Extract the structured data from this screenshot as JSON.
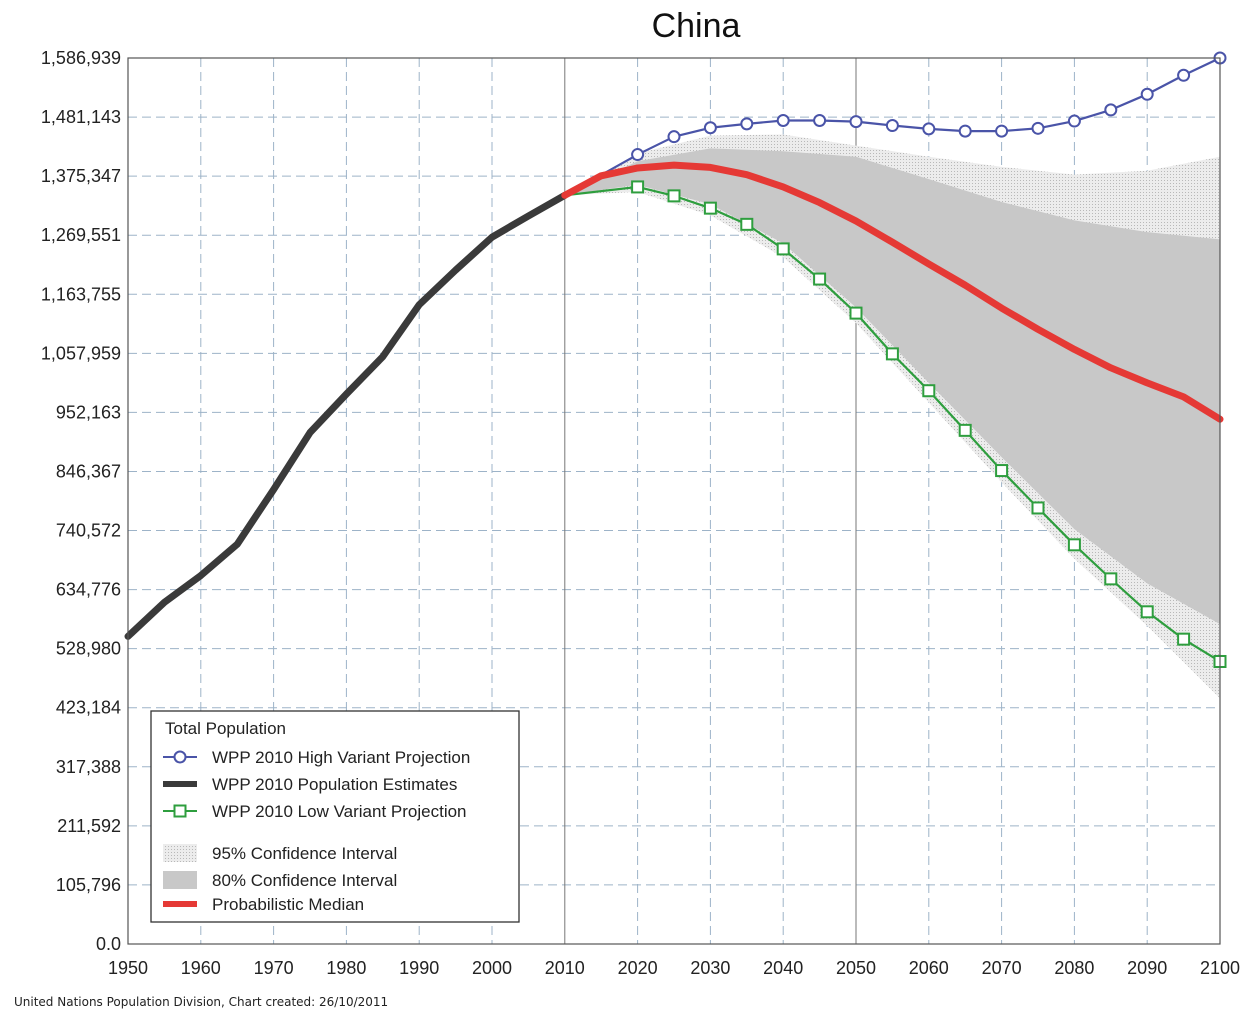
{
  "chart_data": {
    "type": "line",
    "title": "China",
    "xlabel": "",
    "ylabel": "",
    "xlim": [
      1950,
      2100
    ],
    "ylim": [
      0,
      1586939
    ],
    "x_ticks": [
      "1950",
      "1960",
      "1970",
      "1980",
      "1990",
      "2000",
      "2010",
      "2020",
      "2030",
      "2040",
      "2050",
      "2060",
      "2070",
      "2080",
      "2090",
      "2100"
    ],
    "y_ticks": [
      "0.0",
      "105,796",
      "211,592",
      "317,388",
      "423,184",
      "528,980",
      "634,776",
      "740,572",
      "846,367",
      "952,163",
      "1,057,959",
      "1,163,755",
      "1,269,551",
      "1,375,347",
      "1,481,143",
      "1,586,939"
    ],
    "grid": true,
    "legend": {
      "title": "Total Population",
      "placement": "bottom-left",
      "entries": [
        {
          "label": "WPP 2010 High Variant Projection",
          "color": "#4a54a8",
          "marker": "circle"
        },
        {
          "label": "WPP 2010 Population Estimates",
          "color": "#3a3a3a",
          "marker": "line"
        },
        {
          "label": "WPP 2010 Low Variant Projection",
          "color": "#2e9e3e",
          "marker": "square"
        },
        {
          "label": "95% Confidence Interval",
          "color": "#e2e2e2",
          "marker": "band"
        },
        {
          "label": "80% Confidence Interval",
          "color": "#c8c8c8",
          "marker": "band"
        },
        {
          "label": "Probabilistic Median",
          "color": "#e53935",
          "marker": "line"
        }
      ]
    },
    "series": [
      {
        "name": "WPP 2010 Population Estimates",
        "color": "#3a3a3a",
        "x": [
          1950,
          1955,
          1960,
          1965,
          1970,
          1975,
          1980,
          1985,
          1990,
          1995,
          2000,
          2005,
          2010
        ],
        "y": [
          551000,
          612000,
          660000,
          716000,
          814000,
          916000,
          985000,
          1052000,
          1145000,
          1207000,
          1266000,
          1304000,
          1341000
        ]
      },
      {
        "name": "WPP 2010 High Variant Projection",
        "color": "#4a54a8",
        "x": [
          2010,
          2020,
          2025,
          2030,
          2035,
          2040,
          2045,
          2050,
          2055,
          2060,
          2065,
          2070,
          2075,
          2080,
          2085,
          2090,
          2095,
          2100
        ],
        "y": [
          1341000,
          1414000,
          1446000,
          1462000,
          1469000,
          1475000,
          1475000,
          1473000,
          1466000,
          1460000,
          1456000,
          1456000,
          1461000,
          1474000,
          1494000,
          1522000,
          1556000,
          1586939
        ]
      },
      {
        "name": "WPP 2010 Low Variant Projection",
        "color": "#2e9e3e",
        "x": [
          2010,
          2020,
          2025,
          2030,
          2035,
          2040,
          2045,
          2050,
          2055,
          2060,
          2065,
          2070,
          2075,
          2080,
          2085,
          2090,
          2095,
          2100
        ],
        "y": [
          1341000,
          1356000,
          1340000,
          1318000,
          1289000,
          1245000,
          1191000,
          1130000,
          1057000,
          991000,
          920000,
          848000,
          781000,
          715000,
          654000,
          595000,
          546000,
          506000
        ]
      },
      {
        "name": "Probabilistic Median",
        "color": "#e53935",
        "x": [
          2010,
          2015,
          2020,
          2025,
          2030,
          2035,
          2040,
          2045,
          2050,
          2055,
          2060,
          2065,
          2070,
          2075,
          2080,
          2085,
          2090,
          2095,
          2100
        ],
        "y": [
          1341000,
          1376000,
          1390000,
          1395000,
          1391000,
          1378000,
          1356000,
          1328000,
          1295000,
          1257000,
          1218000,
          1180000,
          1139000,
          1101000,
          1065000,
          1032000,
          1005000,
          980000,
          940000
        ]
      }
    ],
    "bands": [
      {
        "name": "95% Confidence Interval",
        "color": "#e2e2e2",
        "x": [
          2010,
          2020,
          2030,
          2040,
          2050,
          2060,
          2070,
          2080,
          2090,
          2100
        ],
        "upper": [
          1341000,
          1416000,
          1448000,
          1450000,
          1430000,
          1410000,
          1392000,
          1378000,
          1385000,
          1410000
        ],
        "lower": [
          1341000,
          1347000,
          1305000,
          1230000,
          1112000,
          970000,
          827000,
          690000,
          570000,
          440000
        ]
      },
      {
        "name": "80% Confidence Interval",
        "color": "#c8c8c8",
        "x": [
          2010,
          2020,
          2030,
          2040,
          2050,
          2060,
          2070,
          2080,
          2090,
          2100
        ],
        "upper": [
          1341000,
          1402000,
          1425000,
          1420000,
          1410000,
          1370000,
          1329000,
          1296000,
          1275000,
          1262000
        ],
        "lower": [
          1341000,
          1360000,
          1325000,
          1255000,
          1140000,
          1005000,
          872000,
          743000,
          646000,
          573000
        ]
      }
    ]
  },
  "footer": "United Nations Population Division, Chart created: 26/10/2011"
}
